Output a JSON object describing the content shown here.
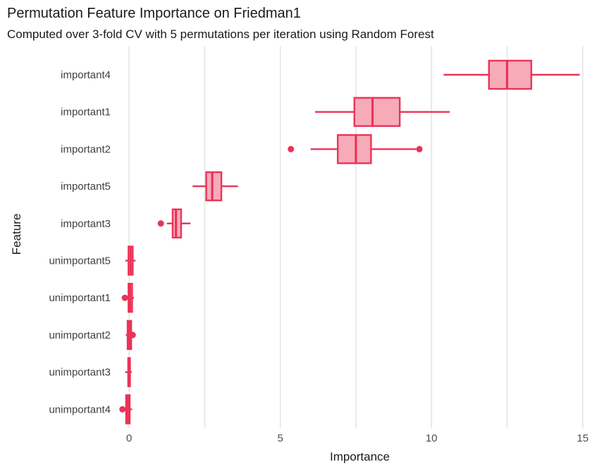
{
  "chart_data": {
    "type": "boxplot",
    "orientation": "horizontal",
    "title": "Permutation Feature Importance on Friedman1",
    "subtitle": "Computed over 3-fold CV with 5 permutations per iteration using Random Forest",
    "xlabel": "Importance",
    "ylabel": "Feature",
    "xlim": [
      -0.47,
      15.73
    ],
    "x_major_ticks": [
      0,
      5,
      10,
      15
    ],
    "x_gridlines": [
      0,
      2.5,
      5,
      7.5,
      10,
      12.5,
      15
    ],
    "grid": "vertical-only",
    "legend": "none",
    "categories": [
      "important4",
      "important1",
      "important2",
      "important5",
      "important3",
      "unimportant5",
      "unimportant1",
      "unimportant2",
      "unimportant3",
      "unimportant4"
    ],
    "boxes": [
      {
        "feature": "important4",
        "whisker_low": 10.4,
        "q1": 11.9,
        "median": 12.5,
        "q3": 13.3,
        "whisker_high": 14.9,
        "outliers": []
      },
      {
        "feature": "important1",
        "whisker_low": 6.15,
        "q1": 7.45,
        "median": 8.05,
        "q3": 8.95,
        "whisker_high": 10.6,
        "outliers": []
      },
      {
        "feature": "important2",
        "whisker_low": 6.0,
        "q1": 6.9,
        "median": 7.5,
        "q3": 8.0,
        "whisker_high": 9.5,
        "outliers": [
          5.35,
          9.6
        ]
      },
      {
        "feature": "important5",
        "whisker_low": 2.1,
        "q1": 2.55,
        "median": 2.75,
        "q3": 3.05,
        "whisker_high": 3.6,
        "outliers": []
      },
      {
        "feature": "important3",
        "whisker_low": 1.25,
        "q1": 1.44,
        "median": 1.55,
        "q3": 1.72,
        "whisker_high": 2.03,
        "outliers": [
          1.05
        ]
      },
      {
        "feature": "unimportant5",
        "whisker_low": -0.12,
        "q1": -0.02,
        "median": 0.05,
        "q3": 0.12,
        "whisker_high": 0.21,
        "outliers": []
      },
      {
        "feature": "unimportant1",
        "whisker_low": -0.1,
        "q1": -0.02,
        "median": 0.03,
        "q3": 0.1,
        "whisker_high": 0.16,
        "outliers": [
          -0.14
        ]
      },
      {
        "feature": "unimportant2",
        "whisker_low": -0.11,
        "q1": -0.05,
        "median": 0.01,
        "q3": 0.07,
        "whisker_high": 0.09,
        "outliers": [
          0.12
        ]
      },
      {
        "feature": "unimportant3",
        "whisker_low": -0.13,
        "q1": -0.03,
        "median": 0.0,
        "q3": 0.03,
        "whisker_high": 0.09,
        "outliers": []
      },
      {
        "feature": "unimportant4",
        "whisker_low": -0.12,
        "q1": -0.1,
        "median": -0.04,
        "q3": 0.02,
        "whisker_high": 0.1,
        "outliers": [
          -0.22
        ]
      }
    ],
    "colors": {
      "box_border": "#ea3358",
      "box_fill": "#f7abb9",
      "gridline": "#e4e4e4",
      "tick_label": "#4d4d4d",
      "category_label": "#404040",
      "title_text": "#1a1a1a",
      "background": "#ffffff"
    }
  }
}
